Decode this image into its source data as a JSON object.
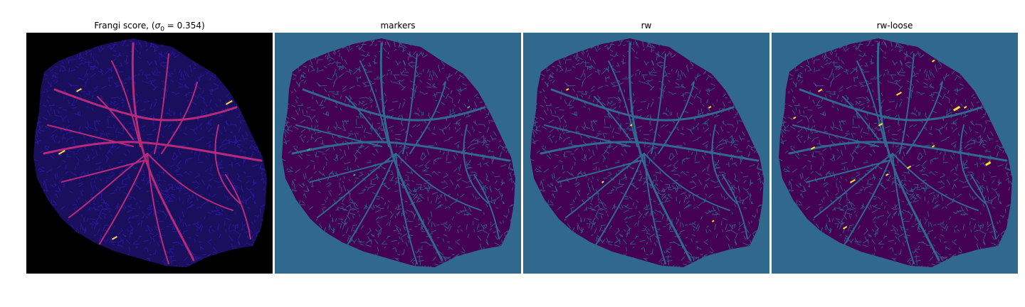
{
  "panels": [
    {
      "id": "frangi",
      "title_prefix": "Frangi score, (",
      "sigma_symbol": "σ",
      "sigma_sub": "0",
      "title_eq": " = 0.354",
      "title_suffix": ")",
      "background": "#000000",
      "tissue_color": "#1a0f5c",
      "texture_color": "#2d1aa8",
      "vessel_color": "#b8297a",
      "highlight_color": "#ffd84a"
    },
    {
      "id": "markers",
      "title": "markers",
      "background": "#31688e",
      "tissue_color": "#440154",
      "texture_color": "#31688e",
      "vessel_color": "#31688e",
      "highlight_color": "#35b779"
    },
    {
      "id": "rw",
      "title": "rw",
      "background": "#31688e",
      "tissue_color": "#440154",
      "texture_color": "#31688e",
      "vessel_color": "#31688e",
      "highlight_color": "#fde725"
    },
    {
      "id": "rw-loose",
      "title": "rw-loose",
      "background": "#31688e",
      "tissue_color": "#440154",
      "texture_color": "#31688e",
      "vessel_color": "#31688e",
      "highlight_color": "#fde725"
    }
  ]
}
